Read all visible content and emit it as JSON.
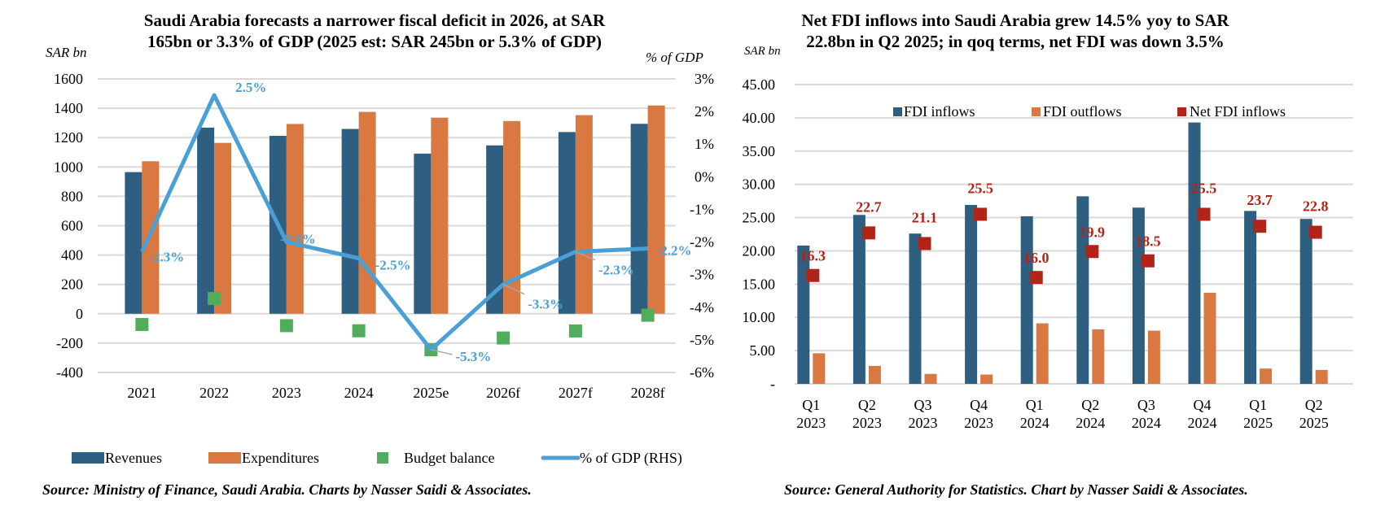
{
  "colors": {
    "revenues": "#2e5f80",
    "expenditures": "#d97941",
    "budget_balance": "#4fad5b",
    "pct_gdp": "#4aa0d5",
    "fdi_inflows": "#2e5f80",
    "fdi_outflows": "#d97941",
    "net_fdi": "#b22418",
    "grid": "#d9d9d9"
  },
  "chart_data": [
    {
      "type": "bar",
      "title_lines": [
        "Saudi Arabia forecasts a narrower fiscal deficit in 2026, at SAR",
        "165bn or 3.3% of GDP (2025 est: SAR 245bn or 5.3% of GDP)"
      ],
      "ylabel": "SAR bn",
      "y2label": "% of GDP",
      "ylim": [
        -400,
        1600
      ],
      "yticks": [
        "1600",
        "1400",
        "1200",
        "1000",
        "800",
        "600",
        "400",
        "200",
        "0",
        "-200",
        "-400"
      ],
      "y2lim": [
        -6,
        3
      ],
      "y2ticks": [
        "3%",
        "2%",
        "1%",
        "0%",
        "-1%",
        "-2%",
        "-3%",
        "-4%",
        "-5%",
        "-6%"
      ],
      "grid": true,
      "categories": [
        "2021",
        "2022",
        "2023",
        "2024",
        "2025e",
        "2026f",
        "2027f",
        "2028f"
      ],
      "series": [
        {
          "name": "Revenues",
          "type": "bar",
          "values": [
            965,
            1268,
            1212,
            1259,
            1091,
            1147,
            1238,
            1294
          ]
        },
        {
          "name": "Expenditures",
          "type": "bar",
          "values": [
            1039,
            1164,
            1293,
            1375,
            1336,
            1313,
            1353,
            1419
          ]
        },
        {
          "name": "Budget balance",
          "type": "marker",
          "values": [
            -73,
            104,
            -81,
            -116,
            -245,
            -165,
            -117,
            -10
          ]
        },
        {
          "name": "% of GDP (RHS)",
          "type": "line",
          "axis": "right",
          "values": [
            -2.3,
            2.5,
            -2.0,
            -2.5,
            -5.3,
            -3.3,
            -2.3,
            -2.2
          ],
          "labels": [
            "-2.3%",
            "2.5%",
            "-2.0%",
            "-2.5%",
            "-5.3%",
            "-3.3%",
            "-2.3%",
            "-2.2%"
          ]
        }
      ],
      "legend": [
        "Revenues",
        "Expenditures",
        "Budget balance",
        "% of GDP (RHS)"
      ],
      "legend_position": "bottom",
      "source": "Source: Ministry of Finance, Saudi Arabia. Charts by Nasser Saidi & Associates."
    },
    {
      "type": "bar",
      "title_lines": [
        "Net FDI inflows into Saudi Arabia grew 14.5% yoy to SAR",
        "22.8bn in Q2 2025; in qoq terms, net FDI was down 3.5%"
      ],
      "ylabel": "SAR bn",
      "ylim": [
        0,
        45
      ],
      "yticks": [
        "45.00",
        "40.00",
        "35.00",
        "30.00",
        "25.00",
        "20.00",
        "15.00",
        "10.00",
        "5.00",
        "-"
      ],
      "grid": true,
      "categories": [
        [
          "Q1",
          "2023"
        ],
        [
          "Q2",
          "2023"
        ],
        [
          "Q3",
          "2023"
        ],
        [
          "Q4",
          "2023"
        ],
        [
          "Q1",
          "2024"
        ],
        [
          "Q2",
          "2024"
        ],
        [
          "Q3",
          "2024"
        ],
        [
          "Q4",
          "2024"
        ],
        [
          "Q1",
          "2025"
        ],
        [
          "Q2",
          "2025"
        ]
      ],
      "series": [
        {
          "name": "FDI inflows",
          "type": "bar",
          "values": [
            20.8,
            25.4,
            22.6,
            26.9,
            25.2,
            28.2,
            26.5,
            39.3,
            26.0,
            24.8
          ]
        },
        {
          "name": "FDI outflows",
          "type": "bar",
          "values": [
            4.6,
            2.7,
            1.5,
            1.4,
            9.1,
            8.2,
            8.0,
            13.7,
            2.3,
            2.1
          ]
        },
        {
          "name": "Net FDI inflows",
          "type": "marker",
          "values": [
            16.3,
            22.7,
            21.1,
            25.5,
            16.0,
            19.9,
            18.5,
            25.5,
            23.7,
            22.8
          ],
          "labels": [
            "16.3",
            "22.7",
            "21.1",
            "25.5",
            "16.0",
            "19.9",
            "18.5",
            "25.5",
            "23.7",
            "22.8"
          ]
        }
      ],
      "legend": [
        "FDI inflows",
        "FDI outflows",
        "Net FDI inflows"
      ],
      "legend_position": "top-center",
      "source": "Source: General Authority for Statistics. Chart by Nasser Saidi & Associates."
    }
  ]
}
